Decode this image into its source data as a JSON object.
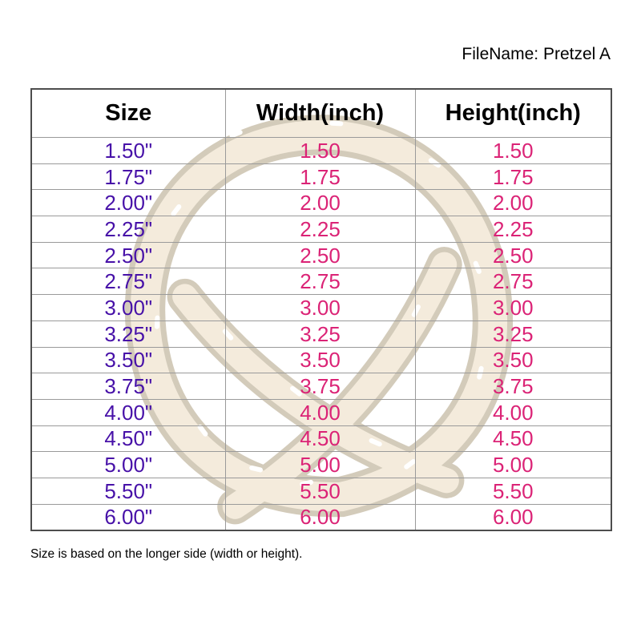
{
  "header": {
    "filename_label": "FileName: Pretzel A"
  },
  "table": {
    "columns": [
      "Size",
      "Width(inch)",
      "Height(inch)"
    ],
    "rows": [
      {
        "size": "1.50\"",
        "width": "1.50",
        "height": "1.50"
      },
      {
        "size": "1.75\"",
        "width": "1.75",
        "height": "1.75"
      },
      {
        "size": "2.00\"",
        "width": "2.00",
        "height": "2.00"
      },
      {
        "size": "2.25\"",
        "width": "2.25",
        "height": "2.25"
      },
      {
        "size": "2.50\"",
        "width": "2.50",
        "height": "2.50"
      },
      {
        "size": "2.75\"",
        "width": "2.75",
        "height": "2.75"
      },
      {
        "size": "3.00\"",
        "width": "3.00",
        "height": "3.00"
      },
      {
        "size": "3.25\"",
        "width": "3.25",
        "height": "3.25"
      },
      {
        "size": "3.50\"",
        "width": "3.50",
        "height": "3.50"
      },
      {
        "size": "3.75\"",
        "width": "3.75",
        "height": "3.75"
      },
      {
        "size": "4.00\"",
        "width": "4.00",
        "height": "4.00"
      },
      {
        "size": "4.50\"",
        "width": "4.50",
        "height": "4.50"
      },
      {
        "size": "5.00\"",
        "width": "5.00",
        "height": "5.00"
      },
      {
        "size": "5.50\"",
        "width": "5.50",
        "height": "5.50"
      },
      {
        "size": "6.00\"",
        "width": "6.00",
        "height": "6.00"
      }
    ]
  },
  "footer": {
    "note": "Size is based on the longer side (width or height)."
  },
  "watermark": {
    "name": "pretzel illustration watermark"
  },
  "colors": {
    "size_text": "#4711a8",
    "value_text": "#db2376",
    "header_text": "#000000",
    "grid_line": "#9a9a9a",
    "outer_border": "#4d4d4d",
    "watermark_outline": "#a89878",
    "watermark_fill": "#ead9bb"
  }
}
